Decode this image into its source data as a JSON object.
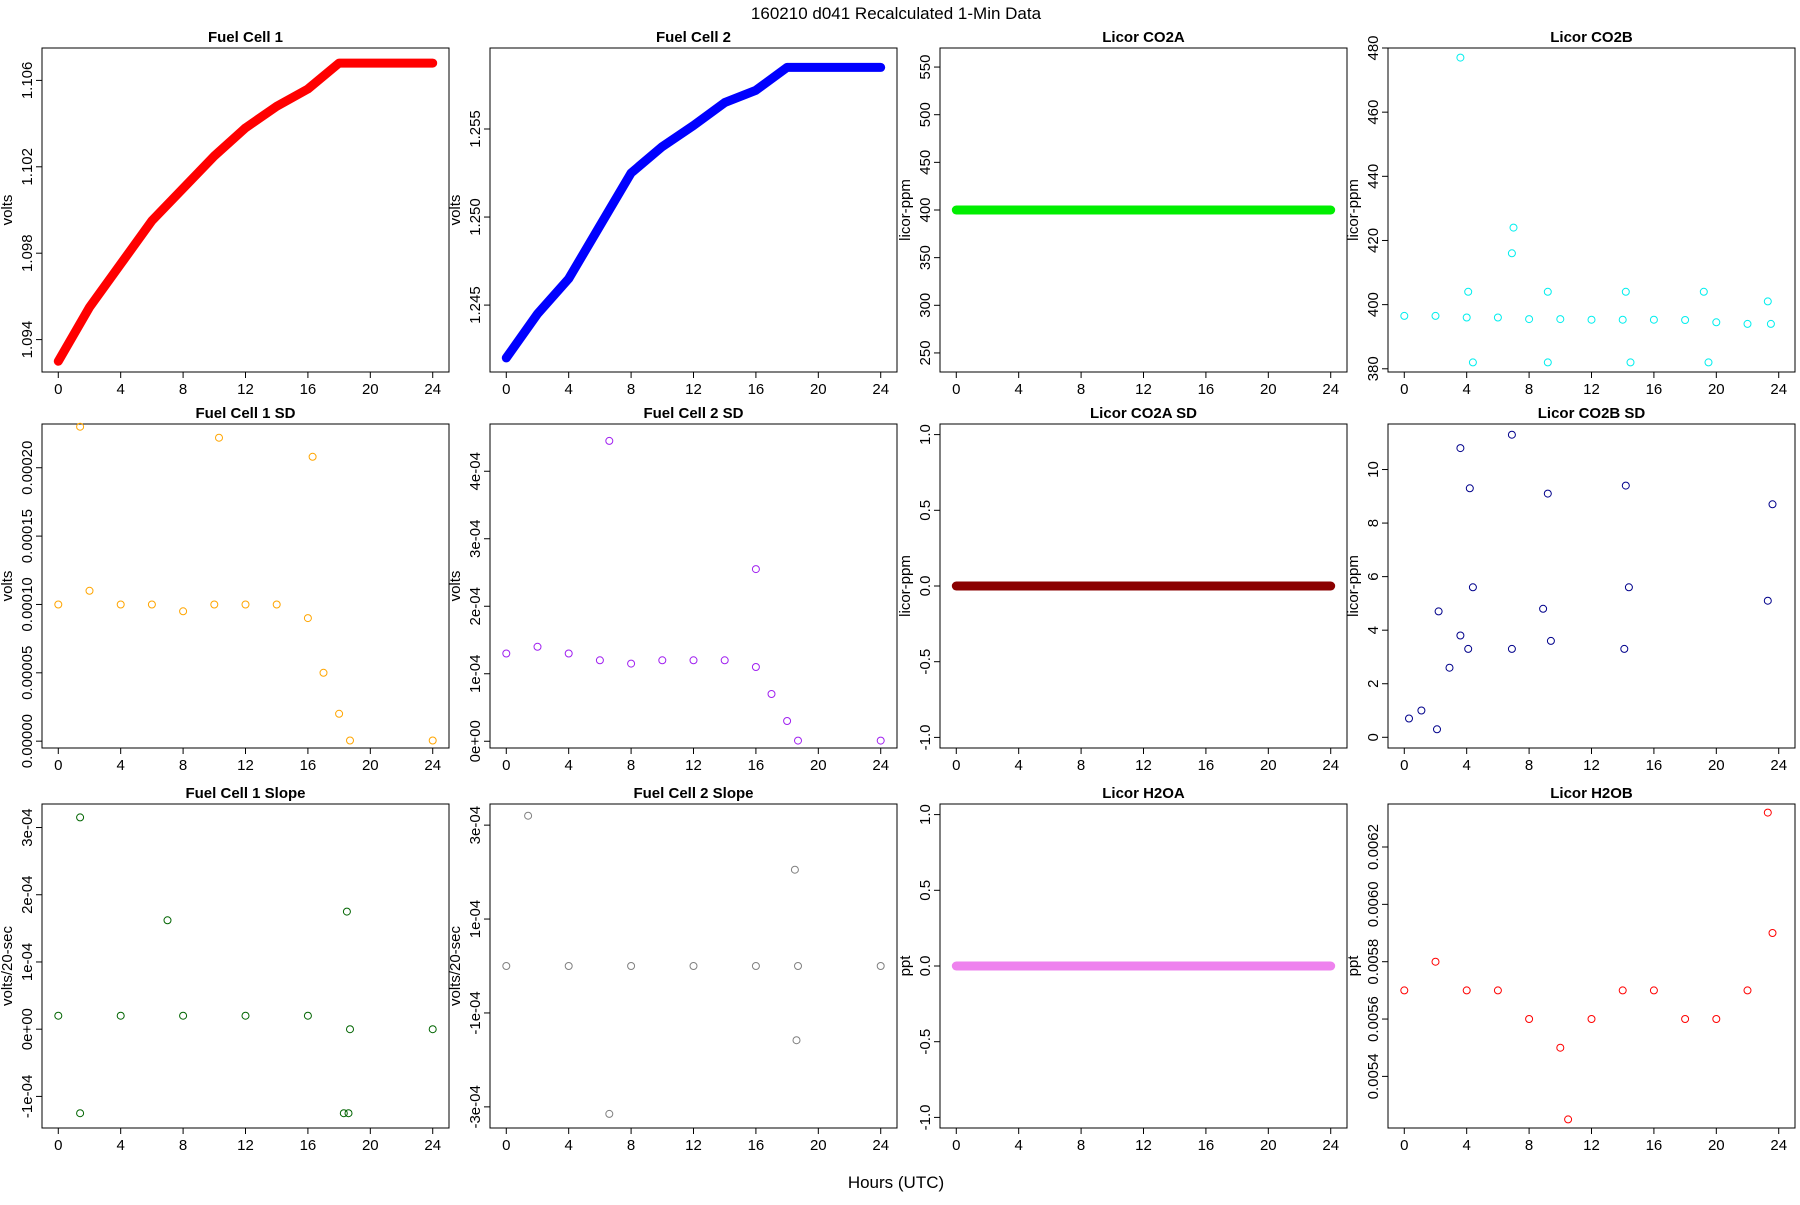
{
  "figure": {
    "title": "160210   d041   Recalculated 1-Min Data",
    "xlabel": "Hours (UTC)"
  },
  "chart_data": [
    {
      "type": "scatter",
      "title": "Fuel Cell 1",
      "ylabel": "volts",
      "color": "#ff0000",
      "marker": "filled",
      "xlim": [
        0,
        24
      ],
      "xticks": [
        0,
        4,
        8,
        12,
        16,
        20,
        24
      ],
      "xtick_labels": [
        "0",
        "4",
        "8",
        "12",
        "16",
        "20",
        "24"
      ],
      "ylim": [
        1.0925,
        1.1075
      ],
      "yticks": [
        1.094,
        1.098,
        1.102,
        1.106
      ],
      "ytick_labels": [
        "1.094",
        "1.098",
        "1.102",
        "1.106"
      ],
      "x": [
        0,
        2,
        4,
        6,
        8,
        10,
        12,
        14,
        16,
        18,
        18.7,
        24
      ],
      "y": [
        1.093,
        1.0955,
        1.0975,
        1.0995,
        1.101,
        1.1025,
        1.1038,
        1.1048,
        1.1056,
        1.1068,
        1.1068,
        1.1068
      ]
    },
    {
      "type": "scatter",
      "title": "Fuel Cell 2",
      "ylabel": "volts",
      "color": "#0000ff",
      "marker": "filled",
      "xlim": [
        0,
        24
      ],
      "xticks": [
        0,
        4,
        8,
        12,
        16,
        20,
        24
      ],
      "xtick_labels": [
        "0",
        "4",
        "8",
        "12",
        "16",
        "20",
        "24"
      ],
      "ylim": [
        1.2412,
        1.2596
      ],
      "yticks": [
        1.245,
        1.25,
        1.255
      ],
      "ytick_labels": [
        "1.245",
        "1.250",
        "1.255"
      ],
      "x": [
        0,
        2,
        4,
        6,
        8,
        10,
        12,
        14,
        16,
        18,
        18.7,
        24
      ],
      "y": [
        1.242,
        1.2445,
        1.2465,
        1.2495,
        1.2525,
        1.254,
        1.2552,
        1.2565,
        1.2572,
        1.2585,
        1.2585,
        1.2585
      ]
    },
    {
      "type": "scatter",
      "title": "Licor CO2A",
      "ylabel": "licor-ppm",
      "color": "#00ee00",
      "marker": "filled",
      "xlim": [
        0,
        24
      ],
      "xticks": [
        0,
        4,
        8,
        12,
        16,
        20,
        24
      ],
      "xtick_labels": [
        "0",
        "4",
        "8",
        "12",
        "16",
        "20",
        "24"
      ],
      "ylim": [
        230,
        570
      ],
      "yticks": [
        250,
        300,
        350,
        400,
        450,
        500,
        550
      ],
      "ytick_labels": [
        "250",
        "300",
        "350",
        "400",
        "450",
        "500",
        "550"
      ],
      "x": [
        0,
        24
      ],
      "y": [
        400,
        400
      ]
    },
    {
      "type": "scatter",
      "title": "Licor CO2B",
      "ylabel": "licor-ppm",
      "color": "#00eeee",
      "marker": "open",
      "xlim": [
        0,
        24
      ],
      "xticks": [
        0,
        4,
        8,
        12,
        16,
        20,
        24
      ],
      "xtick_labels": [
        "0",
        "4",
        "8",
        "12",
        "16",
        "20",
        "24"
      ],
      "ylim": [
        379,
        480
      ],
      "yticks": [
        380,
        400,
        420,
        440,
        460,
        480
      ],
      "ytick_labels": [
        "380",
        "400",
        "420",
        "440",
        "460",
        "480"
      ],
      "x": [
        0,
        2,
        4,
        6,
        8,
        10,
        12,
        14,
        16,
        18,
        20,
        22,
        23.5,
        3.6,
        7.0,
        6.9,
        4.1,
        9.2,
        14.2,
        19.2,
        9.2,
        4.4,
        14.5,
        19.5,
        23.3
      ],
      "y": [
        396.5,
        396.5,
        396,
        396,
        395.5,
        395.5,
        395.3,
        395.3,
        395.3,
        395.2,
        394.5,
        394,
        394,
        477,
        424,
        416,
        404,
        404,
        404,
        404,
        382,
        382,
        382,
        382,
        401
      ]
    },
    {
      "type": "scatter",
      "title": "Fuel Cell 1 SD",
      "ylabel": "volts",
      "color": "#ffa500",
      "marker": "open",
      "xlim": [
        0,
        24
      ],
      "xticks": [
        0,
        4,
        8,
        12,
        16,
        20,
        24
      ],
      "xtick_labels": [
        "0",
        "4",
        "8",
        "12",
        "16",
        "20",
        "24"
      ],
      "ylim": [
        -5e-06,
        0.000232
      ],
      "yticks": [
        0,
        5e-05,
        0.0001,
        0.00015,
        0.0002
      ],
      "ytick_labels": [
        "0.00000",
        "0.00005",
        "0.00010",
        "0.00015",
        "0.00020"
      ],
      "x": [
        0,
        2,
        4,
        6,
        8,
        10,
        12,
        14,
        16,
        17,
        18,
        18.7,
        24,
        1.4,
        10.3,
        16.3
      ],
      "y": [
        0.0001,
        0.00011,
        0.0001,
        0.0001,
        9.5e-05,
        0.0001,
        0.0001,
        0.0001,
        9e-05,
        5e-05,
        2e-05,
        5e-07,
        5e-07,
        0.00023,
        0.000222,
        0.000208
      ]
    },
    {
      "type": "scatter",
      "title": "Fuel Cell 2 SD",
      "ylabel": "volts",
      "color": "#a020f0",
      "marker": "open",
      "xlim": [
        0,
        24
      ],
      "xticks": [
        0,
        4,
        8,
        12,
        16,
        20,
        24
      ],
      "xtick_labels": [
        "0",
        "4",
        "8",
        "12",
        "16",
        "20",
        "24"
      ],
      "ylim": [
        -1e-05,
        0.00047
      ],
      "yticks": [
        0,
        0.0001,
        0.0002,
        0.0003,
        0.0004
      ],
      "ytick_labels": [
        "0e+00",
        "1e-04",
        "2e-04",
        "3e-04",
        "4e-04"
      ],
      "x": [
        0,
        2,
        4,
        6,
        8,
        10,
        12,
        14,
        16,
        17,
        18,
        18.7,
        24,
        6.6,
        16
      ],
      "y": [
        0.00013,
        0.00014,
        0.00013,
        0.00012,
        0.000115,
        0.00012,
        0.00012,
        0.00012,
        0.00011,
        7e-05,
        3e-05,
        1e-06,
        1e-06,
        0.000445,
        0.000255
      ]
    },
    {
      "type": "scatter",
      "title": "Licor CO2A SD",
      "ylabel": "licor-ppm",
      "color": "#8b0000",
      "marker": "filled",
      "xlim": [
        0,
        24
      ],
      "xticks": [
        0,
        4,
        8,
        12,
        16,
        20,
        24
      ],
      "xtick_labels": [
        "0",
        "4",
        "8",
        "12",
        "16",
        "20",
        "24"
      ],
      "ylim": [
        -1.07,
        1.07
      ],
      "yticks": [
        -1.0,
        -0.5,
        0.0,
        0.5,
        1.0
      ],
      "ytick_labels": [
        "-1.0",
        "-0.5",
        "0.0",
        "0.5",
        "1.0"
      ],
      "x": [
        0,
        24
      ],
      "y": [
        0,
        0
      ]
    },
    {
      "type": "scatter",
      "title": "Licor CO2B SD",
      "ylabel": "licor-ppm",
      "color": "#00008b",
      "marker": "open",
      "xlim": [
        0,
        24
      ],
      "xticks": [
        0,
        4,
        8,
        12,
        16,
        20,
        24
      ],
      "xtick_labels": [
        "0",
        "4",
        "8",
        "12",
        "16",
        "20",
        "24"
      ],
      "ylim": [
        -0.4,
        11.7
      ],
      "yticks": [
        0,
        2,
        4,
        6,
        8,
        10
      ],
      "ytick_labels": [
        "0",
        "2",
        "4",
        "6",
        "8",
        "10"
      ],
      "x": [
        3.6,
        6.9,
        4.2,
        9.2,
        14.2,
        23.6,
        4.4,
        8.9,
        14.4,
        23.3,
        3.6,
        4.1,
        2.9,
        9.4,
        2.2,
        14.1,
        6.9,
        1.1,
        0.3,
        2.1
      ],
      "y": [
        10.8,
        11.3,
        9.3,
        9.1,
        9.4,
        8.7,
        5.6,
        4.8,
        5.6,
        5.1,
        3.8,
        3.3,
        2.6,
        3.6,
        4.7,
        3.3,
        3.3,
        1.0,
        0.7,
        0.3
      ]
    },
    {
      "type": "scatter",
      "title": "Fuel Cell 1 Slope",
      "ylabel": "volts/20-sec",
      "color": "#006400",
      "marker": "open",
      "xlim": [
        0,
        24
      ],
      "xticks": [
        0,
        4,
        8,
        12,
        16,
        20,
        24
      ],
      "xtick_labels": [
        "0",
        "4",
        "8",
        "12",
        "16",
        "20",
        "24"
      ],
      "ylim": [
        -0.000147,
        0.000335
      ],
      "yticks": [
        -0.0001,
        0,
        0.0001,
        0.0002,
        0.0003
      ],
      "ytick_labels": [
        "-1e-04",
        "0e+00",
        "1e-04",
        "2e-04",
        "3e-04"
      ],
      "x": [
        0,
        4,
        8,
        12,
        16,
        18.7,
        24,
        1.4,
        7.0,
        18.5,
        18.6,
        1.4,
        18.3
      ],
      "y": [
        2e-05,
        2e-05,
        2e-05,
        2e-05,
        2e-05,
        0,
        0,
        0.000315,
        0.000162,
        0.000175,
        -0.000125,
        -0.000125,
        -0.000125
      ]
    },
    {
      "type": "scatter",
      "title": "Fuel Cell 2 Slope",
      "ylabel": "volts/20-sec",
      "color": "#808080",
      "marker": "open",
      "xlim": [
        0,
        24
      ],
      "xticks": [
        0,
        4,
        8,
        12,
        16,
        20,
        24
      ],
      "xtick_labels": [
        "0",
        "4",
        "8",
        "12",
        "16",
        "20",
        "24"
      ],
      "ylim": [
        -0.000345,
        0.000345
      ],
      "yticks": [
        -0.0003,
        -0.0001,
        0.0001,
        0.0003
      ],
      "ytick_labels": [
        "-3e-04",
        "-1e-04",
        "1e-04",
        "3e-04"
      ],
      "x": [
        0,
        4,
        8,
        12,
        16,
        18.7,
        24,
        1.4,
        6.6,
        18.5,
        18.6
      ],
      "y": [
        0,
        0,
        0,
        0,
        0,
        0,
        0,
        0.00032,
        -0.000315,
        0.000205,
        -0.000158
      ]
    },
    {
      "type": "scatter",
      "title": "Licor H2OA",
      "ylabel": "ppt",
      "color": "#ee82ee",
      "marker": "filled",
      "xlim": [
        0,
        24
      ],
      "xticks": [
        0,
        4,
        8,
        12,
        16,
        20,
        24
      ],
      "xtick_labels": [
        "0",
        "4",
        "8",
        "12",
        "16",
        "20",
        "24"
      ],
      "ylim": [
        -1.07,
        1.07
      ],
      "yticks": [
        -1.0,
        -0.5,
        0.0,
        0.5,
        1.0
      ],
      "ytick_labels": [
        "-1.0",
        "-0.5",
        "0.0",
        "0.5",
        "1.0"
      ],
      "x": [
        0,
        24
      ],
      "y": [
        0,
        0
      ]
    },
    {
      "type": "scatter",
      "title": "Licor H2OB",
      "ylabel": "ppt",
      "color": "#ff0000",
      "marker": "open",
      "xlim": [
        0,
        24
      ],
      "xticks": [
        0,
        4,
        8,
        12,
        16,
        20,
        24
      ],
      "xtick_labels": [
        "0",
        "4",
        "8",
        "12",
        "16",
        "20",
        "24"
      ],
      "ylim": [
        0.00522,
        0.00635
      ],
      "yticks": [
        0.0054,
        0.0056,
        0.0058,
        0.006,
        0.0062
      ],
      "ytick_labels": [
        "0.0054",
        "0.0056",
        "0.0058",
        "0.0060",
        "0.0062"
      ],
      "x": [
        0,
        2,
        4,
        6,
        8,
        10,
        12,
        14,
        16,
        18,
        20,
        22,
        23.6,
        10.5,
        23.3
      ],
      "y": [
        0.0057,
        0.0058,
        0.0057,
        0.0057,
        0.0056,
        0.0055,
        0.0056,
        0.0057,
        0.0057,
        0.0056,
        0.0056,
        0.0057,
        0.0059,
        0.00525,
        0.00632
      ]
    }
  ]
}
